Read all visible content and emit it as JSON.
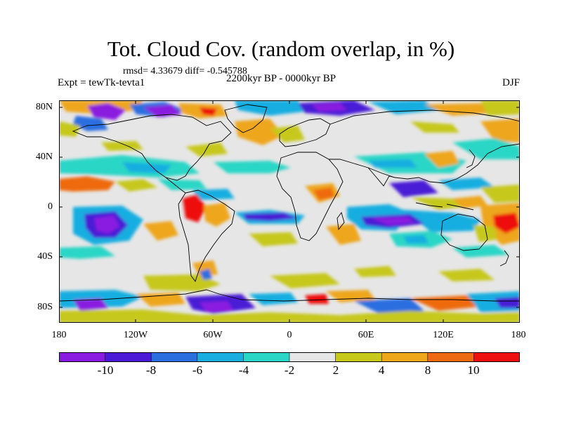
{
  "header": {
    "title": "Tot. Cloud Cov. (random overlap, in %)",
    "stats": "rmsd= 4.33679 diff= -0.545788",
    "experiment": "Expt = tewTk-tevta1",
    "period": "2200kyr BP - 0000kyr BP",
    "season": "DJF"
  },
  "map": {
    "lat_labels": [
      "80N",
      "40N",
      "0",
      "40S",
      "80S"
    ],
    "lon_labels": [
      "180",
      "120W",
      "60W",
      "0",
      "60E",
      "120E",
      "180"
    ]
  },
  "colorbar": {
    "labels": [
      "-10",
      "-8",
      "-6",
      "-4",
      "-2",
      "2",
      "4",
      "8",
      "10"
    ],
    "colors": [
      "#8a1be0",
      "#4a1ad6",
      "#2a6ee0",
      "#18aee0",
      "#2ad6c6",
      "#e6e6e6",
      "#c6c81a",
      "#eea61a",
      "#ee6a10",
      "#ee1010"
    ]
  },
  "colors": {
    "ocean_background": "#e6e6e6",
    "coastline": "#000000"
  }
}
